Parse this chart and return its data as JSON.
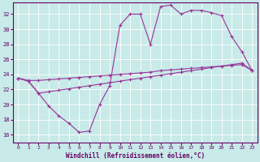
{
  "bg_color": "#c8eae8",
  "grid_color": "#ffffff",
  "line_color": "#993399",
  "tick_color": "#660066",
  "spine_color": "#660066",
  "ylim": [
    15.0,
    33.5
  ],
  "xlim": [
    -0.5,
    23.5
  ],
  "yticks": [
    16,
    18,
    20,
    22,
    24,
    26,
    28,
    30,
    32
  ],
  "xticks": [
    0,
    1,
    2,
    3,
    4,
    5,
    6,
    7,
    8,
    9,
    10,
    11,
    12,
    13,
    14,
    15,
    16,
    17,
    18,
    19,
    20,
    21,
    22,
    23
  ],
  "xlabel": "Windchill (Refroidissement éolien,°C)",
  "line1_x": [
    0,
    1,
    2,
    3,
    4,
    5,
    6,
    7,
    8,
    9,
    10,
    11,
    12,
    13,
    14,
    15,
    16,
    17,
    18,
    19,
    20,
    21,
    22,
    23
  ],
  "line1_y": [
    23.5,
    23.1,
    21.5,
    19.8,
    18.5,
    17.5,
    16.3,
    16.5,
    20.0,
    22.5,
    30.5,
    32.0,
    32.0,
    28.0,
    33.0,
    33.2,
    32.0,
    32.5,
    32.5,
    32.2,
    31.8,
    29.0,
    27.0,
    24.5
  ],
  "line2_x": [
    0,
    1,
    2,
    3,
    4,
    5,
    6,
    7,
    8,
    9,
    10,
    11,
    12,
    13,
    14,
    15,
    16,
    17,
    18,
    19,
    20,
    21,
    22,
    23
  ],
  "line2_y": [
    23.5,
    23.2,
    23.2,
    23.3,
    23.4,
    23.5,
    23.6,
    23.7,
    23.8,
    23.9,
    24.0,
    24.1,
    24.2,
    24.3,
    24.5,
    24.6,
    24.7,
    24.8,
    24.9,
    25.0,
    25.1,
    25.2,
    25.3,
    24.5
  ],
  "line3_x": [
    0,
    1,
    2,
    3,
    4,
    5,
    6,
    7,
    8,
    9,
    10,
    11,
    12,
    13,
    14,
    15,
    16,
    17,
    18,
    19,
    20,
    21,
    22,
    23
  ],
  "line3_y": [
    23.5,
    23.1,
    21.5,
    21.7,
    21.9,
    22.1,
    22.3,
    22.5,
    22.7,
    22.9,
    23.1,
    23.3,
    23.5,
    23.7,
    23.9,
    24.1,
    24.3,
    24.5,
    24.7,
    24.9,
    25.1,
    25.3,
    25.5,
    24.5
  ]
}
